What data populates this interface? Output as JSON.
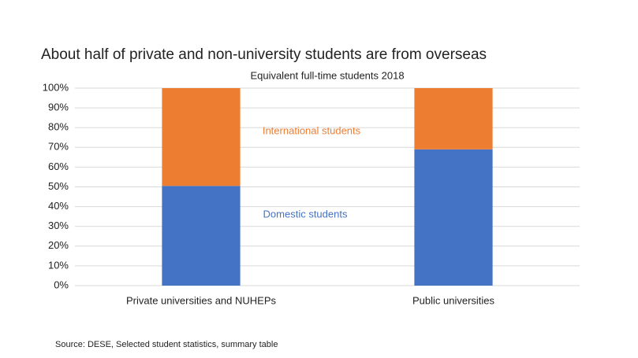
{
  "chart_data": {
    "type": "stacked_bar",
    "title": "About half of private and non-university students are from overseas",
    "subtitle": "Equivalent full-time students 2018",
    "categories": [
      "Private universities and NUHEPs",
      "Public universities"
    ],
    "series": [
      {
        "name": "Domestic students",
        "color": "#4472c4",
        "values": [
          50.5,
          69
        ]
      },
      {
        "name": "International students",
        "color": "#ed7d31",
        "values": [
          49.5,
          31
        ]
      }
    ],
    "ylim": [
      0,
      100
    ],
    "yticks": [
      {
        "value": 0,
        "label": "0%"
      },
      {
        "value": 10,
        "label": "10%"
      },
      {
        "value": 20,
        "label": "20%"
      },
      {
        "value": 30,
        "label": "30%"
      },
      {
        "value": 40,
        "label": "40%"
      },
      {
        "value": 50,
        "label": "50%"
      },
      {
        "value": 60,
        "label": "60%"
      },
      {
        "value": 70,
        "label": "70%"
      },
      {
        "value": 80,
        "label": "80%"
      },
      {
        "value": 90,
        "label": "90%"
      },
      {
        "value": 100,
        "label": "100%"
      }
    ],
    "grid": true,
    "source": "Source: DESE, Selected student statistics, summary table"
  }
}
